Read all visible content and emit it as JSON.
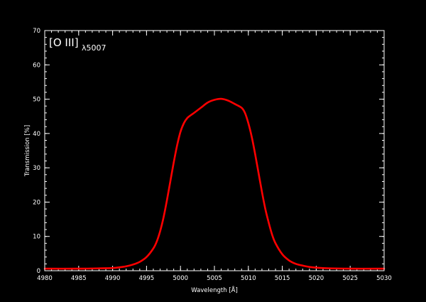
{
  "chart_data": {
    "type": "line",
    "title": "",
    "annotation": {
      "main": "[O III]",
      "subscript": "λ5007"
    },
    "xlabel": "Wavelength [Å]",
    "ylabel": "Transmission [%]",
    "xlim": [
      4980,
      5030
    ],
    "ylim": [
      0,
      70
    ],
    "xticks": [
      4980,
      4985,
      4990,
      4995,
      5000,
      5005,
      5010,
      5015,
      5020,
      5025,
      5030
    ],
    "xtick_labels": [
      "4980",
      "4985",
      "4990",
      "4995",
      "5000",
      "5005",
      "5010",
      "5015",
      "5020",
      "5025",
      "5030"
    ],
    "yticks": [
      0,
      10,
      20,
      30,
      40,
      50,
      60,
      70
    ],
    "ytick_labels": [
      "0",
      "10",
      "20",
      "30",
      "40",
      "50",
      "60",
      "70"
    ],
    "x_minor_step": 1,
    "y_minor_step": 2,
    "grid": false,
    "colors": {
      "background": "#000000",
      "axes": "#ffffff",
      "series": "#ff0000"
    },
    "series": [
      {
        "x": [
          4980,
          4985,
          4988,
          4990,
          4991,
          4992,
          4993,
          4994,
          4995,
          4996,
          4996.5,
          4997,
          4997.5,
          4998,
          4998.5,
          4999,
          4999.5,
          5000,
          5000.5,
          5001,
          5001.5,
          5002,
          5003,
          5004,
          5005,
          5006,
          5007,
          5008,
          5009,
          5009.5,
          5010,
          5010.5,
          5011,
          5011.5,
          5012,
          5012.5,
          5013,
          5013.5,
          5014,
          5015,
          5016,
          5017,
          5018,
          5019,
          5020,
          5022,
          5025,
          5030
        ],
        "y": [
          0.6,
          0.6,
          0.7,
          0.8,
          1.0,
          1.3,
          1.8,
          2.6,
          4.0,
          6.5,
          8.5,
          11.5,
          15.5,
          20.5,
          26.0,
          31.5,
          36.5,
          40.5,
          43.0,
          44.5,
          45.3,
          46.0,
          47.5,
          49.0,
          49.8,
          50.1,
          49.6,
          48.6,
          47.5,
          46.0,
          43.0,
          39.0,
          34.0,
          28.5,
          23.0,
          18.0,
          14.0,
          10.5,
          8.0,
          4.8,
          3.0,
          2.0,
          1.5,
          1.1,
          0.9,
          0.7,
          0.6,
          0.6
        ]
      }
    ]
  }
}
